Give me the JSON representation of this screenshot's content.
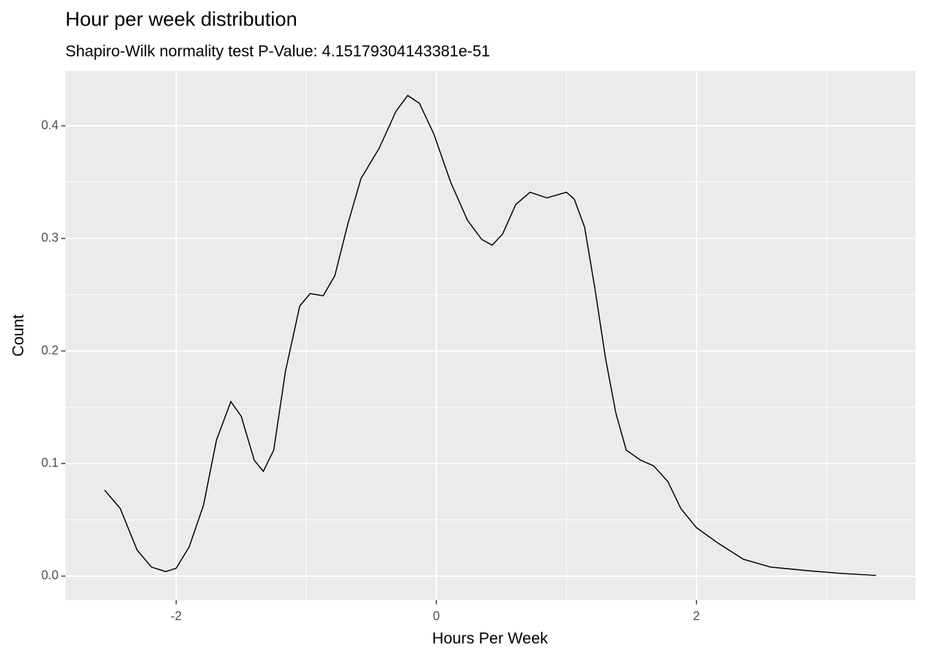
{
  "chart_data": {
    "type": "line",
    "title": "Hour per week distribution",
    "subtitle": "Shapiro-Wilk normality test  P-Value:  4.15179304143381e-51",
    "x_label": "Hours Per Week",
    "y_label": "Count",
    "xlim": [
      -2.852,
      3.683
    ],
    "ylim": [
      -0.0214,
      0.4489
    ],
    "xticks": [
      -2,
      0,
      2
    ],
    "yticks": [
      {
        "value": 0,
        "label": "0.0"
      },
      0.1,
      0.2,
      0.3,
      0.4
    ],
    "xminor": [
      -1,
      1,
      3
    ],
    "yminor": [
      0.05,
      0.15,
      0.25,
      0.35
    ],
    "grid": true,
    "series": [
      {
        "color": "#000000",
        "x": [
          -2.55,
          -2.43,
          -2.3,
          -2.19,
          -2.08,
          -2.0,
          -1.9,
          -1.79,
          -1.69,
          -1.58,
          -1.5,
          -1.4,
          -1.33,
          -1.25,
          -1.16,
          -1.05,
          -0.97,
          -0.87,
          -0.78,
          -0.68,
          -0.58,
          -0.44,
          -0.31,
          -0.22,
          -0.13,
          -0.02,
          0.11,
          0.24,
          0.35,
          0.43,
          0.51,
          0.61,
          0.72,
          0.85,
          1.0,
          1.06,
          1.14,
          1.22,
          1.3,
          1.38,
          1.46,
          1.57,
          1.67,
          1.78,
          1.88,
          2.0,
          2.17,
          2.36,
          2.57,
          2.84,
          3.1,
          3.38
        ],
        "values": [
          0.0763,
          0.06,
          0.023,
          0.008,
          0.004,
          0.007,
          0.026,
          0.063,
          0.121,
          0.155,
          0.142,
          0.103,
          0.093,
          0.112,
          0.182,
          0.24,
          0.251,
          0.249,
          0.267,
          0.313,
          0.353,
          0.38,
          0.413,
          0.427,
          0.42,
          0.393,
          0.35,
          0.316,
          0.299,
          0.294,
          0.304,
          0.33,
          0.341,
          0.336,
          0.341,
          0.335,
          0.31,
          0.255,
          0.194,
          0.145,
          0.112,
          0.103,
          0.098,
          0.084,
          0.06,
          0.043,
          0.029,
          0.015,
          0.008,
          0.005,
          0.0025,
          0.0006
        ]
      }
    ]
  }
}
